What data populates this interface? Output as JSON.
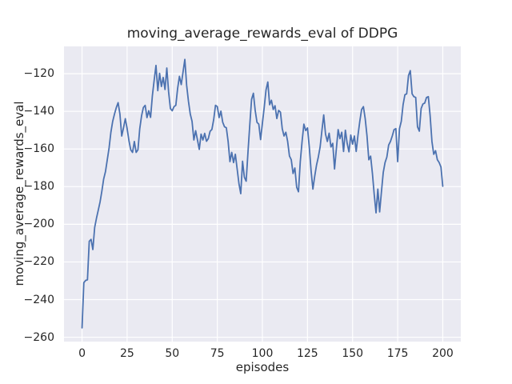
{
  "figure": {
    "title": "moving_average_rewards_eval of DDPG",
    "xlabel": "episodes",
    "ylabel": "moving_average_rewards_eval"
  },
  "chart_data": {
    "type": "line",
    "title": "moving_average_rewards_eval of DDPG",
    "xlabel": "episodes",
    "ylabel": "moving_average_rewards_eval",
    "x_ticks": [
      0,
      25,
      50,
      75,
      100,
      125,
      150,
      175,
      200
    ],
    "y_ticks": [
      -120,
      -140,
      -160,
      -180,
      -200,
      -220,
      -240,
      -260
    ],
    "xlim": [
      -10,
      210
    ],
    "ylim": [
      -262.3,
      -105.5
    ],
    "grid": true,
    "legend": "none",
    "style": "seaborn-darkgrid",
    "colors": {
      "figure_background": "#ffffff",
      "axes_background": "#eaeaf2",
      "grid": "#ffffff",
      "line": "#4c72b0",
      "text": "#262626"
    },
    "series": [
      {
        "name": "moving_average_rewards_eval",
        "color": "#4c72b0",
        "x_start": 0,
        "x_step": 1,
        "values": [
          -255.0,
          -231.0,
          -229.8,
          -229.5,
          -209.0,
          -208.0,
          -213.4,
          -201.7,
          -196.8,
          -192.5,
          -188.1,
          -182.3,
          -175.9,
          -172.0,
          -165.7,
          -159.4,
          -151.1,
          -145.3,
          -141.4,
          -138.0,
          -135.4,
          -141.4,
          -153.1,
          -148.7,
          -143.9,
          -149.2,
          -155.5,
          -160.4,
          -161.8,
          -156.0,
          -161.8,
          -160.4,
          -149.2,
          -142.4,
          -138.0,
          -136.8,
          -143.3,
          -139.7,
          -143.2,
          -131.7,
          -123.4,
          -115.6,
          -129.0,
          -119.8,
          -126.8,
          -122.0,
          -128.4,
          -117.0,
          -129.7,
          -138.5,
          -139.7,
          -137.5,
          -136.8,
          -127.8,
          -121.4,
          -125.8,
          -119.1,
          -112.4,
          -126.2,
          -134.6,
          -141.4,
          -145.3,
          -155.2,
          -150.3,
          -155.2,
          -160.2,
          -152.1,
          -155.2,
          -151.7,
          -155.9,
          -154.5,
          -150.6,
          -149.6,
          -144.3,
          -136.8,
          -137.5,
          -143.3,
          -139.9,
          -145.8,
          -148.2,
          -148.7,
          -156.0,
          -166.7,
          -161.8,
          -167.2,
          -162.8,
          -170.6,
          -178.4,
          -183.7,
          -166.5,
          -175.0,
          -177.1,
          -161.8,
          -147.2,
          -133.6,
          -130.4,
          -139.5,
          -145.8,
          -146.8,
          -155.0,
          -146.3,
          -138.0,
          -128.7,
          -124.4,
          -136.5,
          -134.1,
          -139.0,
          -137.0,
          -143.8,
          -139.5,
          -140.4,
          -149.2,
          -153.1,
          -151.1,
          -156.0,
          -163.7,
          -165.7,
          -173.0,
          -170.1,
          -180.3,
          -182.7,
          -166.7,
          -156.0,
          -146.8,
          -150.2,
          -148.8,
          -158.9,
          -171.6,
          -181.3,
          -174.5,
          -168.6,
          -164.3,
          -158.9,
          -150.2,
          -141.9,
          -152.1,
          -156.0,
          -151.6,
          -158.9,
          -157.0,
          -170.6,
          -159.9,
          -149.7,
          -154.5,
          -151.1,
          -161.3,
          -150.0,
          -157.0,
          -161.5,
          -152.6,
          -157.4,
          -153.1,
          -161.3,
          -152.6,
          -145.3,
          -139.0,
          -137.5,
          -143.9,
          -153.1,
          -165.7,
          -163.8,
          -173.0,
          -184.2,
          -193.9,
          -181.3,
          -193.4,
          -182.7,
          -172.5,
          -167.2,
          -164.3,
          -157.9,
          -156.0,
          -153.1,
          -149.7,
          -149.2,
          -166.7,
          -149.2,
          -145.3,
          -136.5,
          -131.2,
          -130.7,
          -121.0,
          -118.4,
          -130.7,
          -132.2,
          -132.6,
          -148.2,
          -150.5,
          -138.5,
          -136.1,
          -135.6,
          -132.6,
          -132.2,
          -142.4,
          -156.0,
          -162.8,
          -160.9,
          -165.7,
          -167.2,
          -169.6,
          -179.8
        ]
      }
    ]
  }
}
